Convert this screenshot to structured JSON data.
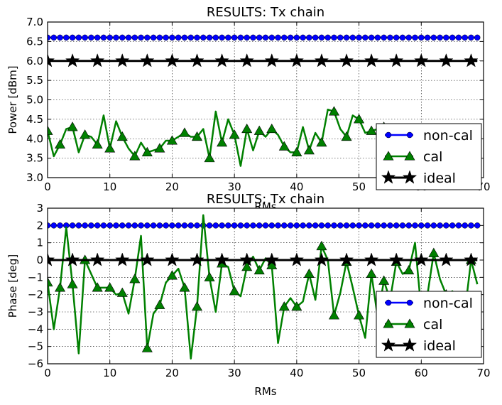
{
  "chart_data": [
    {
      "type": "line",
      "title": "RESULTS: Tx chain",
      "xlabel": "RMs",
      "ylabel": "Power [dBm]",
      "xlim": [
        0,
        70
      ],
      "ylim": [
        3.0,
        7.0
      ],
      "xticks": [
        "0",
        "10",
        "20",
        "30",
        "40",
        "50",
        "60",
        "70"
      ],
      "yticks": [
        "3.0",
        "3.5",
        "4.0",
        "4.5",
        "5.0",
        "5.5",
        "6.0",
        "6.5",
        "7.0"
      ],
      "grid": true,
      "legend_position": "lower-right",
      "x": [
        0,
        1,
        2,
        3,
        4,
        5,
        6,
        7,
        8,
        9,
        10,
        11,
        12,
        13,
        14,
        15,
        16,
        17,
        18,
        19,
        20,
        21,
        22,
        23,
        24,
        25,
        26,
        27,
        28,
        29,
        30,
        31,
        32,
        33,
        34,
        35,
        36,
        37,
        38,
        39,
        40,
        41,
        42,
        43,
        44,
        45,
        46,
        47,
        48,
        49,
        50,
        51,
        52,
        53,
        54,
        55,
        56,
        57,
        58,
        59,
        60,
        61,
        62,
        63,
        64,
        65,
        66,
        67,
        68,
        69
      ],
      "series": [
        {
          "name": "non-cal",
          "color": "#0000ff",
          "marker": "circle",
          "values": [
            6.6,
            6.6,
            6.6,
            6.6,
            6.6,
            6.6,
            6.6,
            6.6,
            6.6,
            6.6,
            6.6,
            6.6,
            6.6,
            6.6,
            6.6,
            6.6,
            6.6,
            6.6,
            6.6,
            6.6,
            6.6,
            6.6,
            6.6,
            6.6,
            6.6,
            6.6,
            6.6,
            6.6,
            6.6,
            6.6,
            6.6,
            6.6,
            6.6,
            6.6,
            6.6,
            6.6,
            6.6,
            6.6,
            6.6,
            6.6,
            6.6,
            6.6,
            6.6,
            6.6,
            6.6,
            6.6,
            6.6,
            6.6,
            6.6,
            6.6,
            6.6,
            6.6,
            6.6,
            6.6,
            6.6,
            6.6,
            6.6,
            6.6,
            6.6,
            6.6,
            6.6,
            6.6,
            6.6,
            6.6,
            6.6,
            6.6,
            6.6,
            6.6,
            6.6,
            6.6
          ]
        },
        {
          "name": "cal",
          "color": "#008000",
          "marker": "triangle",
          "values": [
            4.2,
            3.55,
            3.85,
            4.25,
            4.3,
            3.65,
            4.1,
            4.05,
            3.85,
            4.6,
            3.75,
            4.45,
            4.05,
            3.75,
            3.55,
            3.9,
            3.65,
            3.7,
            3.75,
            3.95,
            3.95,
            4.05,
            4.15,
            4.05,
            4.05,
            4.25,
            3.5,
            4.7,
            3.9,
            4.5,
            4.1,
            3.3,
            4.25,
            3.7,
            4.2,
            4.05,
            4.25,
            4.1,
            3.8,
            3.65,
            3.65,
            4.3,
            3.7,
            4.15,
            3.9,
            4.75,
            4.7,
            4.25,
            4.05,
            4.6,
            4.5,
            4.15,
            4.2,
            4.25,
            4.3,
            4.25,
            4.25,
            4.2,
            4.25,
            4.3,
            4.25,
            4.2,
            4.25,
            4.3,
            4.25,
            4.3,
            4.2,
            4.25,
            4.2,
            3.85
          ]
        },
        {
          "name": "ideal",
          "color": "#000000",
          "marker": "star",
          "values": [
            6.0,
            6.0,
            6.0,
            6.0,
            6.0,
            6.0,
            6.0,
            6.0,
            6.0,
            6.0,
            6.0,
            6.0,
            6.0,
            6.0,
            6.0,
            6.0,
            6.0,
            6.0,
            6.0,
            6.0,
            6.0,
            6.0,
            6.0,
            6.0,
            6.0,
            6.0,
            6.0,
            6.0,
            6.0,
            6.0,
            6.0,
            6.0,
            6.0,
            6.0,
            6.0,
            6.0,
            6.0,
            6.0,
            6.0,
            6.0,
            6.0,
            6.0,
            6.0,
            6.0,
            6.0,
            6.0,
            6.0,
            6.0,
            6.0,
            6.0,
            6.0,
            6.0,
            6.0,
            6.0,
            6.0,
            6.0,
            6.0,
            6.0,
            6.0,
            6.0,
            6.0,
            6.0,
            6.0,
            6.0,
            6.0,
            6.0,
            6.0,
            6.0,
            6.0,
            6.0
          ]
        }
      ]
    },
    {
      "type": "line",
      "title": "RESULTS: Tx chain",
      "xlabel": "RMs",
      "ylabel": "Phase [deg]",
      "xlim": [
        0,
        70
      ],
      "ylim": [
        -6,
        3
      ],
      "xticks": [
        "0",
        "10",
        "20",
        "30",
        "40",
        "50",
        "60",
        "70"
      ],
      "yticks": [
        "−6",
        "−5",
        "−4",
        "−3",
        "−2",
        "−1",
        "0",
        "1",
        "2",
        "3"
      ],
      "grid": true,
      "legend_position": "lower-right",
      "x": [
        0,
        1,
        2,
        3,
        4,
        5,
        6,
        7,
        8,
        9,
        10,
        11,
        12,
        13,
        14,
        15,
        16,
        17,
        18,
        19,
        20,
        21,
        22,
        23,
        24,
        25,
        26,
        27,
        28,
        29,
        30,
        31,
        32,
        33,
        34,
        35,
        36,
        37,
        38,
        39,
        40,
        41,
        42,
        43,
        44,
        45,
        46,
        47,
        48,
        49,
        50,
        51,
        52,
        53,
        54,
        55,
        56,
        57,
        58,
        59,
        60,
        61,
        62,
        63,
        64,
        65,
        66,
        67,
        68,
        69
      ],
      "series": [
        {
          "name": "non-cal",
          "color": "#0000ff",
          "marker": "circle",
          "values": [
            2,
            2,
            2,
            2,
            2,
            2,
            2,
            2,
            2,
            2,
            2,
            2,
            2,
            2,
            2,
            2,
            2,
            2,
            2,
            2,
            2,
            2,
            2,
            2,
            2,
            2,
            2,
            2,
            2,
            2,
            2,
            2,
            2,
            2,
            2,
            2,
            2,
            2,
            2,
            2,
            2,
            2,
            2,
            2,
            2,
            2,
            2,
            2,
            2,
            2,
            2,
            2,
            2,
            2,
            2,
            2,
            2,
            2,
            2,
            2,
            2,
            2,
            2,
            2,
            2,
            2,
            2,
            2,
            2,
            2
          ]
        },
        {
          "name": "cal",
          "color": "#008000",
          "marker": "triangle",
          "values": [
            -1.3,
            -4.0,
            -1.6,
            1.9,
            -1.4,
            -5.4,
            0.0,
            -0.8,
            -1.6,
            -1.6,
            -1.6,
            -2.0,
            -1.9,
            -3.1,
            -1.1,
            1.4,
            -5.1,
            -3.1,
            -2.6,
            -1.3,
            -0.9,
            -0.5,
            -1.6,
            -5.7,
            -2.7,
            2.6,
            -1.0,
            -3.0,
            -0.2,
            -0.4,
            -1.8,
            -2.1,
            -0.4,
            0.2,
            -0.6,
            0.1,
            -0.3,
            -4.8,
            -2.7,
            -2.2,
            -2.7,
            -2.4,
            -0.8,
            -2.3,
            0.8,
            0.0,
            -3.2,
            -1.9,
            -0.1,
            -1.6,
            -3.2,
            -4.5,
            -0.8,
            -3.3,
            -1.2,
            -2.3,
            -0.1,
            -0.8,
            -0.6,
            1.0,
            -2.9,
            -2.0,
            0.4,
            -1.1,
            -2.0,
            -1.8,
            -2.2,
            -3.0,
            0.0,
            -1.4
          ]
        },
        {
          "name": "ideal",
          "color": "#000000",
          "marker": "star",
          "values": [
            0,
            0,
            0,
            0,
            0,
            0,
            0,
            0,
            0,
            0,
            0,
            0,
            0,
            0,
            0,
            0,
            0,
            0,
            0,
            0,
            0,
            0,
            0,
            0,
            0,
            0,
            0,
            0,
            0,
            0,
            0,
            0,
            0,
            0,
            0,
            0,
            0,
            0,
            0,
            0,
            0,
            0,
            0,
            0,
            0,
            0,
            0,
            0,
            0,
            0,
            0,
            0,
            0,
            0,
            0,
            0,
            0,
            0,
            0,
            0,
            0,
            0,
            0,
            0,
            0,
            0,
            0,
            0,
            0,
            0
          ]
        }
      ]
    }
  ]
}
